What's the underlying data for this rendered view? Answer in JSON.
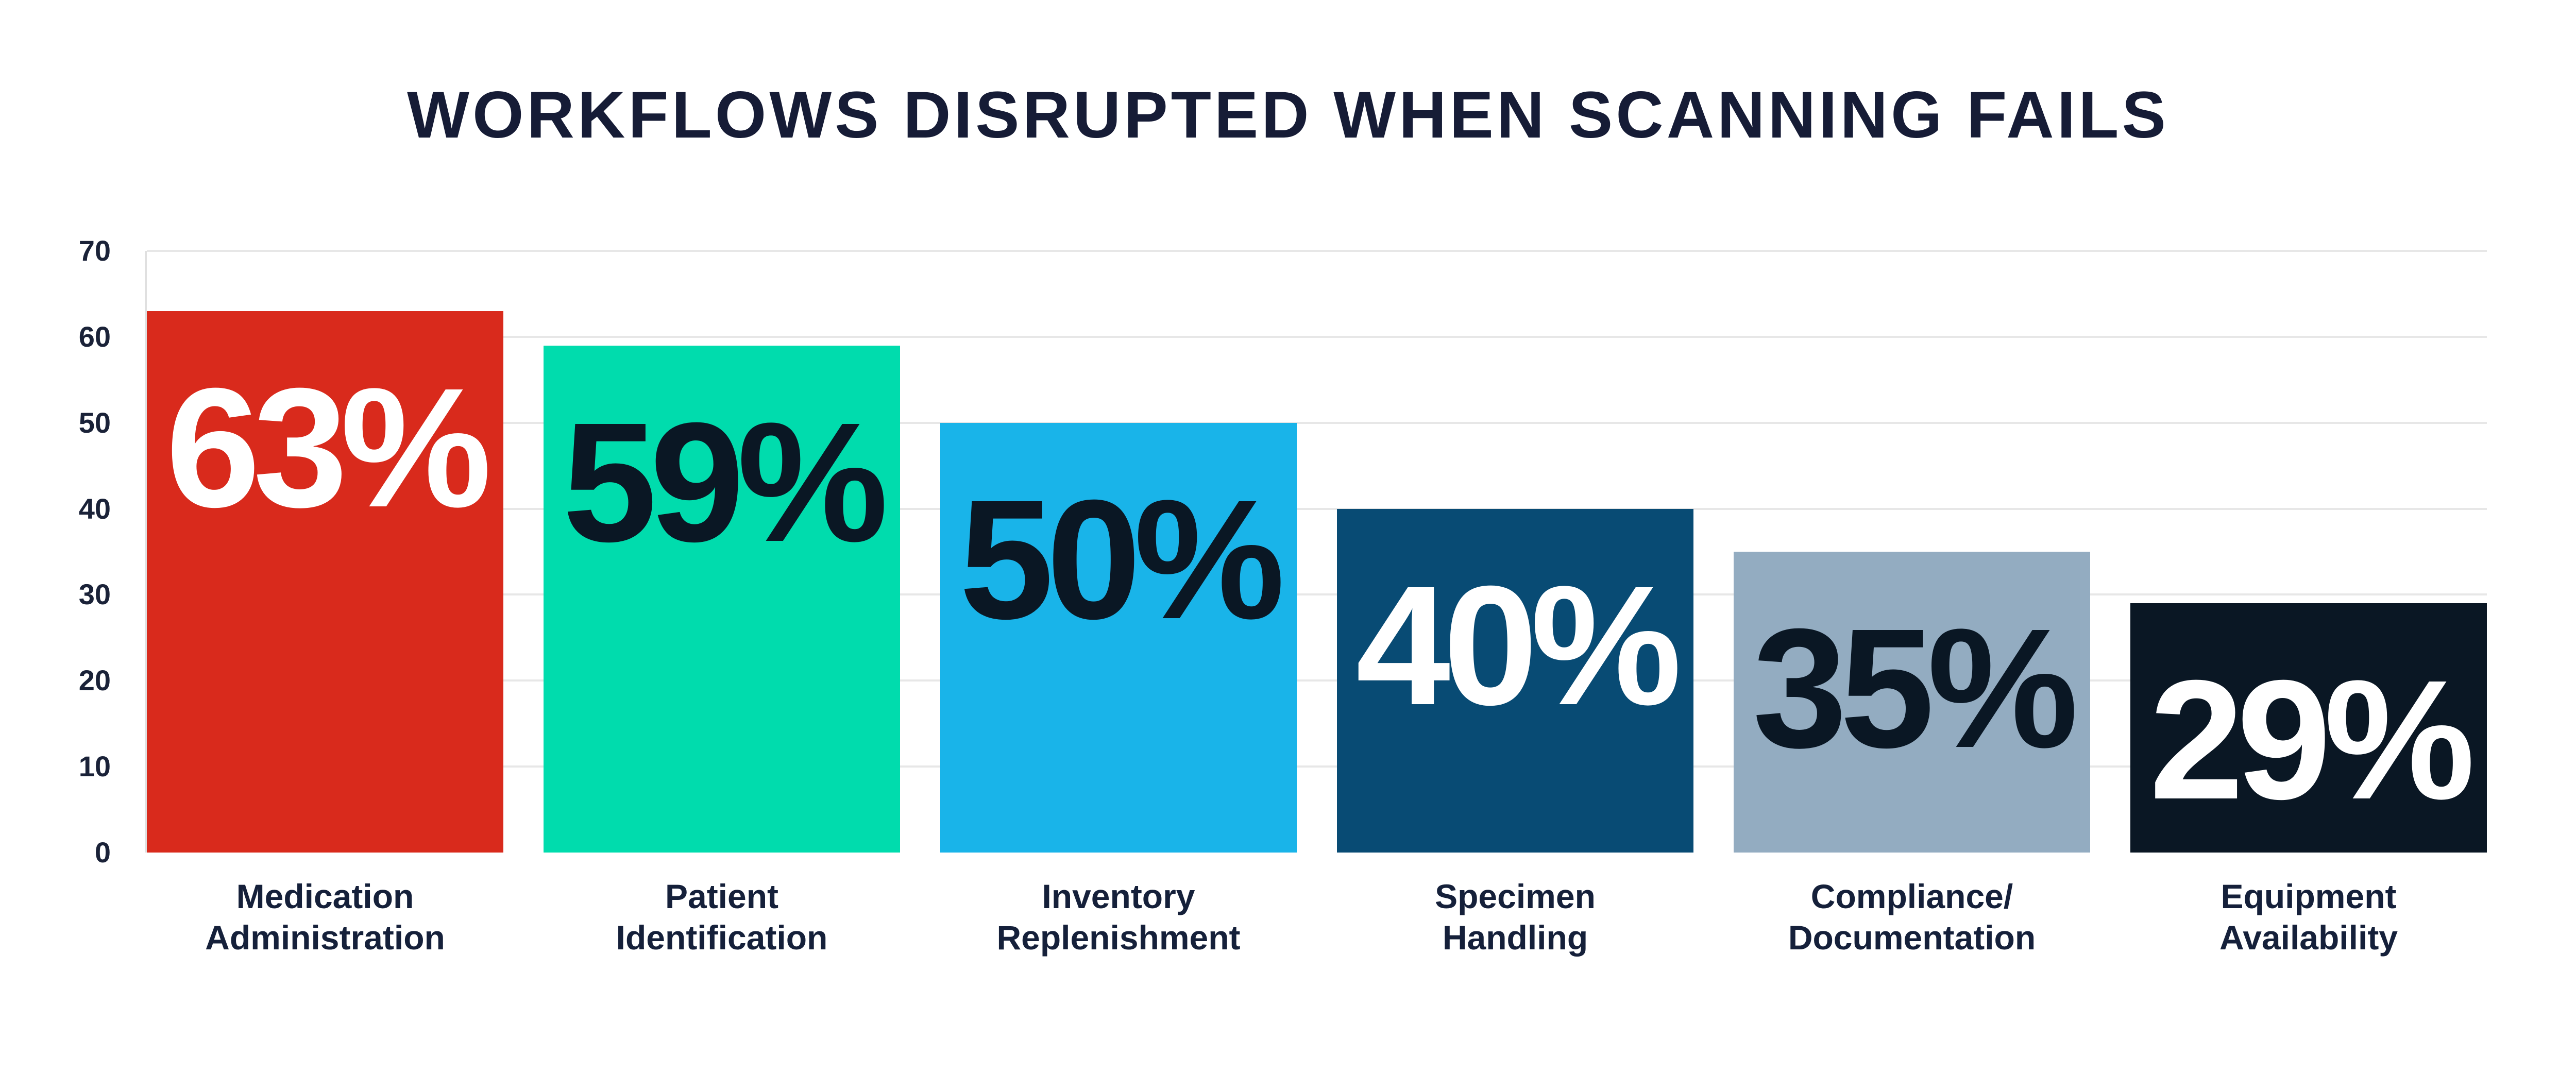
{
  "title": "WORKFLOWS DISRUPTED WHEN SCANNING FAILS",
  "colors": {
    "background": "#FFFFFF",
    "title_text": "#161C36",
    "axis_text": "#1A2238",
    "category_text": "#15203A",
    "gridline": "#E7E7E7"
  },
  "chart_data": {
    "type": "bar",
    "title": "WORKFLOWS DISRUPTED WHEN SCANNING FAILS",
    "xlabel": "",
    "ylabel": "",
    "unit": "%",
    "ylim": [
      0,
      70
    ],
    "yticks": [
      0,
      10,
      20,
      30,
      40,
      50,
      60,
      70
    ],
    "grid": "horizontal",
    "legend": "none",
    "categories": [
      "Medication Administration",
      "Patient Identification",
      "Inventory Replenishment",
      "Specimen Handling",
      "Compliance/Documentation",
      "Equipment Availability"
    ],
    "values": [
      63,
      59,
      50,
      40,
      35,
      29
    ],
    "bars": [
      {
        "label_lines": [
          "Medication",
          "Administration"
        ],
        "value": 63,
        "value_label": "63%",
        "color": "#D92A1C",
        "value_text_color": "#FFFFFF"
      },
      {
        "label_lines": [
          "Patient",
          "Identification"
        ],
        "value": 59,
        "value_label": "59%",
        "color": "#00DCAD",
        "value_text_color": "#0A1724"
      },
      {
        "label_lines": [
          "Inventory",
          "Replenishment"
        ],
        "value": 50,
        "value_label": "50%",
        "color": "#19B4E9",
        "value_text_color": "#0A1724"
      },
      {
        "label_lines": [
          "Specimen",
          "Handling"
        ],
        "value": 40,
        "value_label": "40%",
        "color": "#084B74",
        "value_text_color": "#FFFFFF"
      },
      {
        "label_lines": [
          "Compliance/",
          "Documentation"
        ],
        "value": 35,
        "value_label": "35%",
        "color": "#93ACC1",
        "value_text_color": "#0A1724"
      },
      {
        "label_lines": [
          "Equipment",
          "Availability"
        ],
        "value": 29,
        "value_label": "29%",
        "color": "#0A1724",
        "value_text_color": "#FFFFFF"
      }
    ]
  }
}
